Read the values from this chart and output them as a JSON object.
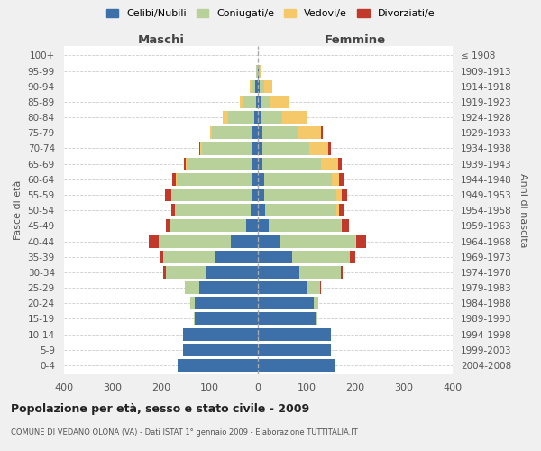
{
  "age_groups": [
    "0-4",
    "5-9",
    "10-14",
    "15-19",
    "20-24",
    "25-29",
    "30-34",
    "35-39",
    "40-44",
    "45-49",
    "50-54",
    "55-59",
    "60-64",
    "65-69",
    "70-74",
    "75-79",
    "80-84",
    "85-89",
    "90-94",
    "95-99",
    "100+"
  ],
  "birth_years": [
    "2004-2008",
    "1999-2003",
    "1994-1998",
    "1989-1993",
    "1984-1988",
    "1979-1983",
    "1974-1978",
    "1969-1973",
    "1964-1968",
    "1959-1963",
    "1954-1958",
    "1949-1953",
    "1944-1948",
    "1939-1943",
    "1934-1938",
    "1929-1933",
    "1924-1928",
    "1919-1923",
    "1914-1918",
    "1909-1913",
    "≤ 1908"
  ],
  "males": {
    "celibi": [
      165,
      155,
      155,
      130,
      130,
      120,
      105,
      90,
      55,
      25,
      15,
      13,
      12,
      11,
      11,
      14,
      7,
      4,
      5,
      1,
      0
    ],
    "coniugati": [
      0,
      0,
      0,
      2,
      10,
      30,
      85,
      105,
      150,
      155,
      155,
      165,
      155,
      135,
      105,
      80,
      55,
      25,
      8,
      2,
      0
    ],
    "vedovi": [
      0,
      0,
      0,
      0,
      0,
      0,
      0,
      0,
      0,
      0,
      1,
      1,
      2,
      3,
      3,
      5,
      10,
      8,
      4,
      1,
      0
    ],
    "divorziati": [
      0,
      0,
      0,
      0,
      0,
      0,
      5,
      8,
      20,
      10,
      8,
      12,
      8,
      3,
      2,
      0,
      0,
      0,
      0,
      0,
      0
    ]
  },
  "females": {
    "nubili": [
      160,
      150,
      150,
      120,
      115,
      100,
      85,
      70,
      45,
      22,
      14,
      12,
      12,
      10,
      10,
      9,
      5,
      5,
      4,
      1,
      0
    ],
    "coniugate": [
      0,
      0,
      0,
      2,
      10,
      28,
      85,
      120,
      155,
      148,
      148,
      150,
      140,
      120,
      95,
      75,
      45,
      20,
      8,
      2,
      0
    ],
    "vedove": [
      0,
      0,
      0,
      0,
      0,
      0,
      0,
      0,
      2,
      2,
      5,
      10,
      15,
      35,
      40,
      45,
      50,
      40,
      18,
      4,
      0
    ],
    "divorziate": [
      0,
      0,
      0,
      0,
      0,
      2,
      5,
      10,
      20,
      15,
      10,
      12,
      10,
      8,
      5,
      5,
      2,
      0,
      0,
      0,
      0
    ]
  },
  "colors": {
    "celibi_nubili": "#3d6fa8",
    "coniugati": "#b8d09a",
    "vedovi": "#f5c96a",
    "divorziati": "#c0392b"
  },
  "title": "Popolazione per età, sesso e stato civile - 2009",
  "subtitle": "COMUNE DI VEDANO OLONA (VA) - Dati ISTAT 1° gennaio 2009 - Elaborazione TUTTITALIA.IT",
  "xlabel_left": "Maschi",
  "xlabel_right": "Femmine",
  "ylabel_left": "Fasce di età",
  "ylabel_right": "Anni di nascita",
  "xlim": 400,
  "bg_color": "#f0f0f0",
  "plot_bg": "#ffffff",
  "legend_labels": [
    "Celibi/Nubili",
    "Coniugati/e",
    "Vedovi/e",
    "Divorziati/e"
  ]
}
